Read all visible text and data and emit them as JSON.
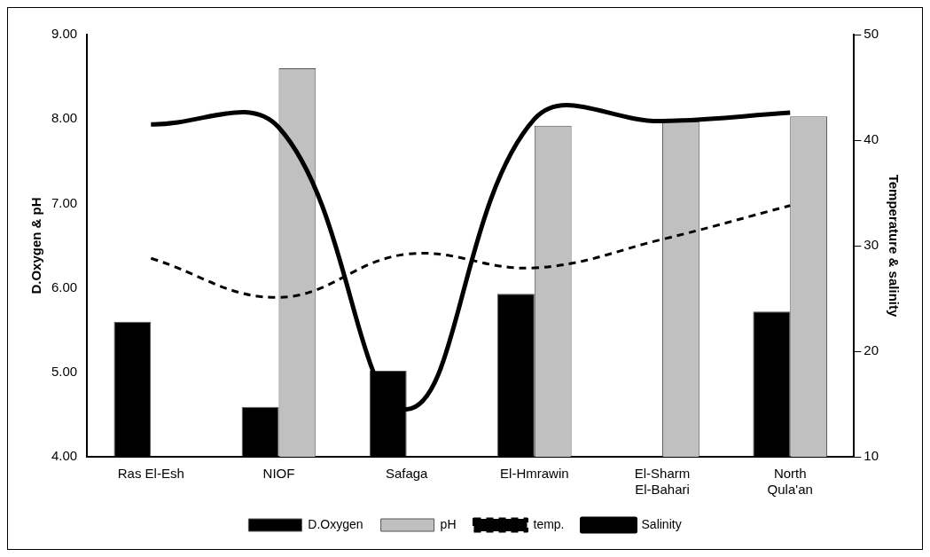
{
  "chart_data": {
    "type": "bar",
    "ylabel": "D.Oxygen & pH",
    "y2label": "Temperature & salinity",
    "categories": [
      "Ras El-Esh",
      "NIOF",
      "Safaga",
      "El-Hmrawin",
      "El-Sharm El-Bahari",
      "North Qula'an"
    ],
    "series": [
      {
        "name": "D.Oxygen",
        "color": "#000000",
        "values": [
          5.6,
          4.59,
          5.02,
          5.93,
          null,
          5.72
        ]
      },
      {
        "name": "pH",
        "color": "#c0c0c0",
        "values": [
          null,
          8.6,
          null,
          7.92,
          7.97,
          8.03
        ]
      },
      {
        "name": "temp.",
        "type": "line",
        "axis": "y2",
        "color": "#000000",
        "line_style": "dashed",
        "values": [
          28.8,
          25.1,
          29.2,
          27.9,
          30.6,
          33.8
        ]
      },
      {
        "name": "Salinity",
        "type": "line",
        "axis": "y2",
        "color": "#000000",
        "line_style": "solid",
        "values": [
          41.5,
          41.2,
          14.5,
          42.0,
          41.8,
          42.6
        ]
      }
    ],
    "ylim": [
      4,
      9
    ],
    "yticks": [
      {
        "value": 4,
        "label": "4.00"
      },
      {
        "value": 5,
        "label": "5.00"
      },
      {
        "value": 6,
        "label": "6.00"
      },
      {
        "value": 7,
        "label": "7.00"
      },
      {
        "value": 8,
        "label": "8.00"
      },
      {
        "value": 9,
        "label": "9.00"
      }
    ],
    "y2lim": [
      10,
      50
    ],
    "y2ticks": [
      10,
      20,
      30,
      40,
      50
    ],
    "grid": false,
    "legend": "bottom",
    "marker": "none"
  }
}
